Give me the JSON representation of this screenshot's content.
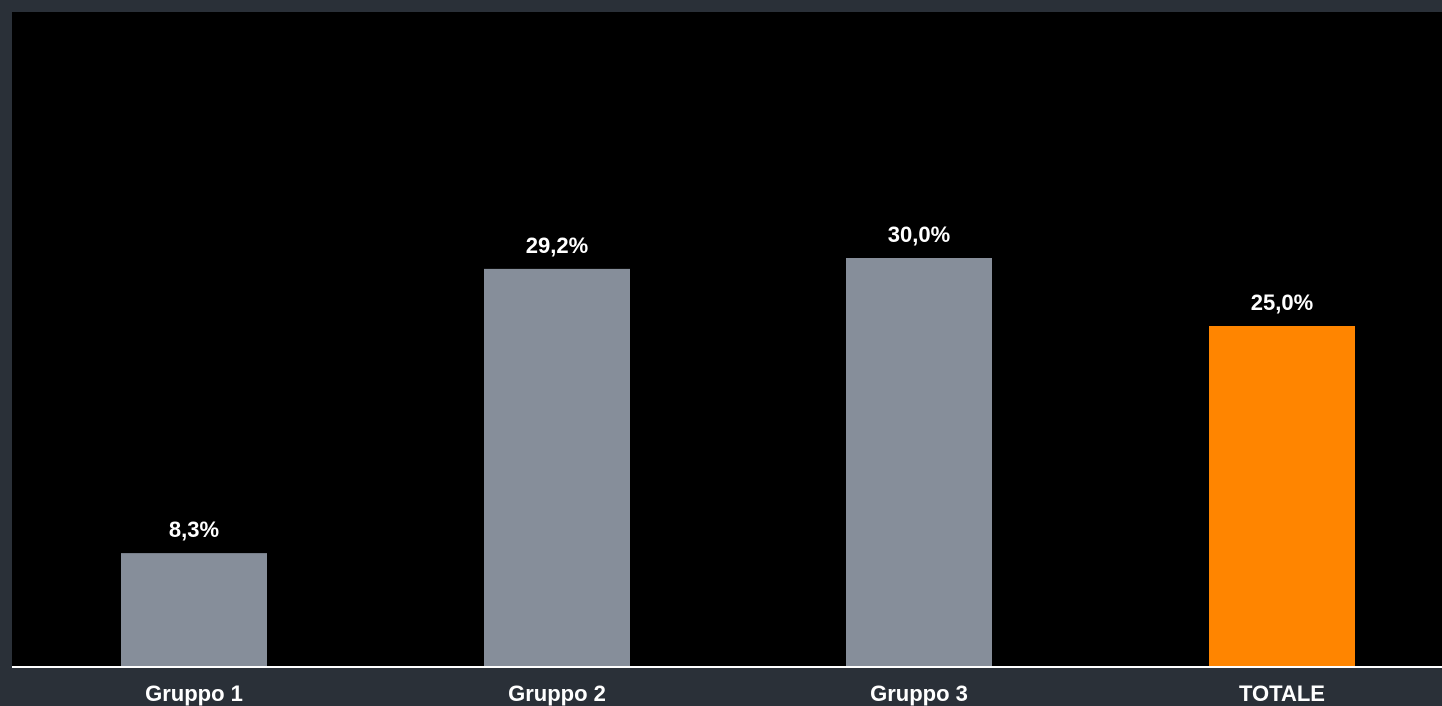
{
  "chart_data": {
    "type": "bar",
    "title": "",
    "xlabel": "",
    "ylabel": "",
    "categories": [
      "Gruppo 1",
      "Gruppo 2",
      "Gruppo 3",
      "TOTALE"
    ],
    "values": [
      8.3,
      29.2,
      30.0,
      25.0
    ],
    "value_labels": [
      "8,3%",
      "29,2%",
      "30,0%",
      "25,0%"
    ],
    "unit": "%",
    "ylim": [
      0,
      50
    ],
    "grid": false,
    "legend": "none",
    "colors": {
      "bar": "#868e9a",
      "highlight": "#ff8500",
      "plot_background": "#000000",
      "page_background": "#2a3038",
      "axis": "#ffffff",
      "text": "#ffffff"
    },
    "highlight_index": 3
  }
}
